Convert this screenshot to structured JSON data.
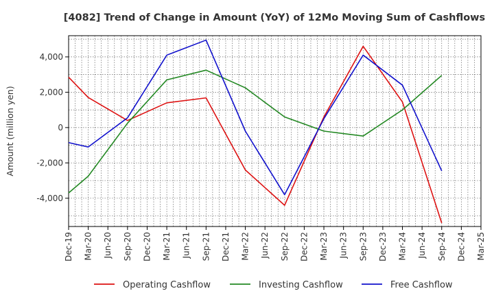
{
  "chart_data": {
    "type": "line",
    "title": "[4082]  Trend of Change in Amount (YoY) of 12Mo Moving Sum of Cashflows",
    "xlabel": "",
    "ylabel": "Amount (million yen)",
    "categories": [
      "Dec-19",
      "Mar-20",
      "Jun-20",
      "Sep-20",
      "Dec-20",
      "Mar-21",
      "Jun-21",
      "Sep-21",
      "Dec-21",
      "Mar-22",
      "Jun-22",
      "Sep-22",
      "Dec-22",
      "Mar-23",
      "Jun-23",
      "Sep-23",
      "Dec-23",
      "Mar-24",
      "Jun-24",
      "Sep-24",
      "Dec-24",
      "Mar-25"
    ],
    "ylim": [
      -5600,
      5200
    ],
    "yticks": [
      -4000,
      -2000,
      0,
      2000,
      4000
    ],
    "ytick_labels": [
      "-4,000",
      "-2,000",
      "0",
      "2,000",
      "4,000"
    ],
    "grid": true,
    "legend_position": "bottom",
    "series": [
      {
        "name": "Operating Cashflow",
        "color": "#dd1111",
        "values": [
          2850,
          1700,
          null,
          400,
          null,
          1400,
          null,
          1680,
          null,
          -2400,
          null,
          -4400,
          null,
          600,
          null,
          4600,
          null,
          1450,
          null,
          -5400,
          null,
          null
        ]
      },
      {
        "name": "Investing Cashflow",
        "color": "#228822",
        "values": [
          -3700,
          -2750,
          null,
          250,
          null,
          2700,
          null,
          3250,
          null,
          2250,
          null,
          600,
          null,
          -200,
          null,
          -480,
          null,
          1000,
          null,
          2950,
          null,
          null
        ]
      },
      {
        "name": "Free Cashflow",
        "color": "#1111cc",
        "values": [
          -850,
          -1100,
          null,
          550,
          null,
          4100,
          null,
          4950,
          null,
          -200,
          null,
          -3800,
          null,
          500,
          null,
          4100,
          null,
          2400,
          null,
          -2450,
          null,
          null
        ]
      }
    ]
  }
}
